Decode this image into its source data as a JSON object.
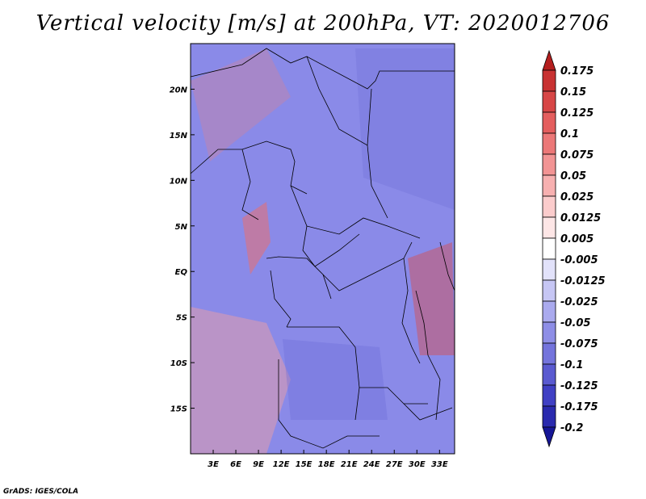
{
  "title": "Vertical velocity [m/s] at 200hPa, VT: 2020012706",
  "credit": "GrADS: IGES/COLA",
  "map": {
    "lat_labels": [
      "20N",
      "15N",
      "10N",
      "5N",
      "EQ",
      "5S",
      "10S",
      "15S"
    ],
    "lat_values": [
      20,
      15,
      10,
      5,
      0,
      -5,
      -10,
      -15
    ],
    "lon_labels": [
      "3E",
      "6E",
      "9E",
      "12E",
      "15E",
      "18E",
      "21E",
      "24E",
      "27E",
      "30E",
      "33E"
    ],
    "lon_values": [
      3,
      6,
      9,
      12,
      15,
      18,
      21,
      24,
      27,
      30,
      33
    ],
    "lon_range": [
      0,
      35
    ],
    "lat_range": [
      -20,
      25
    ]
  },
  "colorbar": {
    "labels": [
      "0.175",
      "0.15",
      "0.125",
      "0.1",
      "0.075",
      "0.05",
      "0.025",
      "0.0125",
      "0.005",
      "-0.005",
      "-0.0125",
      "-0.025",
      "-0.05",
      "-0.075",
      "-0.1",
      "-0.125",
      "-0.175",
      "-0.2"
    ],
    "colors": [
      "#b41e1e",
      "#c83232",
      "#d74646",
      "#e45e5e",
      "#ec7878",
      "#f29494",
      "#f7b0b0",
      "#fbcccc",
      "#fde6e6",
      "#ffffff",
      "#e2e2fa",
      "#c6c6f4",
      "#aaaaee",
      "#8e8ee6",
      "#7474dc",
      "#5a5ad0",
      "#4040c4",
      "#2a2aae",
      "#161696"
    ]
  }
}
